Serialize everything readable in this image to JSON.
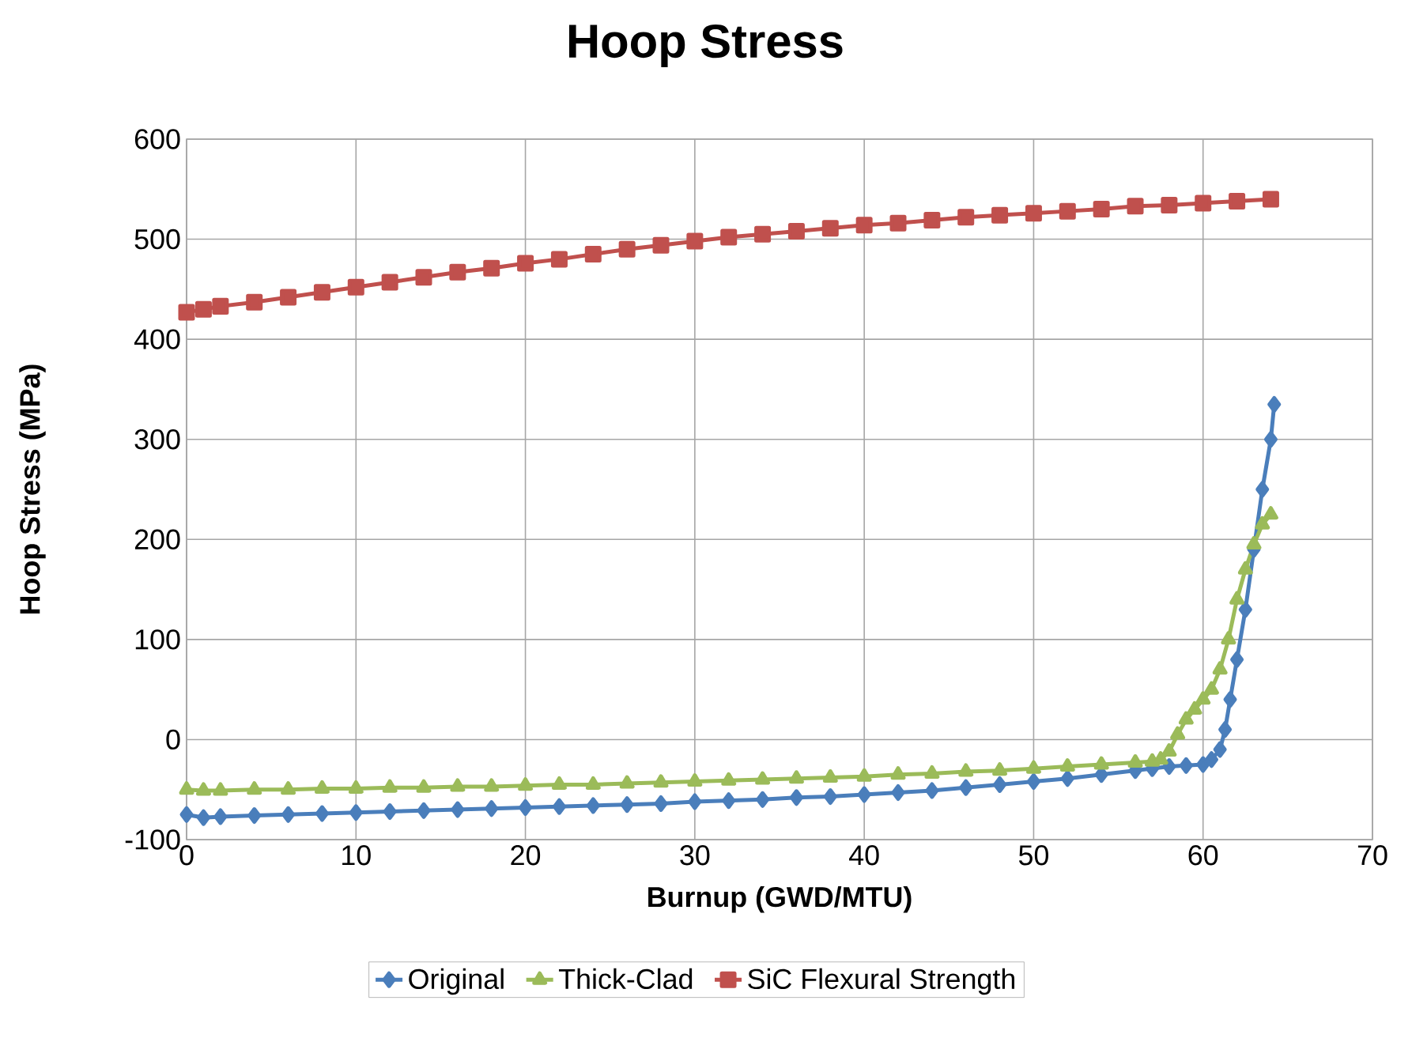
{
  "chart_data": {
    "type": "line",
    "title": "Hoop Stress",
    "xlabel": "Burnup (GWD/MTU)",
    "ylabel": "Hoop Stress (MPa)",
    "xlim": [
      0,
      70
    ],
    "xticks": [
      0,
      10,
      20,
      30,
      40,
      50,
      60,
      70
    ],
    "ylim": [
      -100,
      600
    ],
    "yticks": [
      -100,
      0,
      100,
      200,
      300,
      400,
      500,
      600
    ],
    "grid": true,
    "legend": "bottom",
    "series": [
      {
        "name": "Original",
        "color": "#4a7ebb",
        "marker": "diamond",
        "x": [
          0,
          1,
          2,
          4,
          6,
          8,
          10,
          12,
          14,
          16,
          18,
          20,
          22,
          24,
          26,
          28,
          30,
          32,
          34,
          36,
          38,
          40,
          42,
          44,
          46,
          48,
          50,
          52,
          54,
          56,
          57,
          58,
          59,
          60,
          60.5,
          61,
          61.3,
          61.6,
          62,
          62.5,
          63,
          63.5,
          64,
          64.2
        ],
        "values": [
          -75,
          -78,
          -77,
          -76,
          -75,
          -74,
          -73,
          -72,
          -71,
          -70,
          -69,
          -68,
          -67,
          -66,
          -65,
          -64,
          -62,
          -61,
          -60,
          -58,
          -57,
          -55,
          -53,
          -51,
          -48,
          -45,
          -42,
          -39,
          -35,
          -31,
          -29,
          -27,
          -26,
          -25,
          -20,
          -10,
          10,
          40,
          80,
          130,
          190,
          250,
          300,
          335
        ]
      },
      {
        "name": "Thick-Clad",
        "color": "#9bbb59",
        "marker": "triangle",
        "x": [
          0,
          1,
          2,
          4,
          6,
          8,
          10,
          12,
          14,
          16,
          18,
          20,
          22,
          24,
          26,
          28,
          30,
          32,
          34,
          36,
          38,
          40,
          42,
          44,
          46,
          48,
          50,
          52,
          54,
          56,
          57,
          57.5,
          58,
          58.5,
          59,
          59.5,
          60,
          60.5,
          61,
          61.5,
          62,
          62.5,
          63,
          63.5,
          64
        ],
        "values": [
          -50,
          -51,
          -51,
          -50,
          -50,
          -49,
          -49,
          -48,
          -48,
          -47,
          -47,
          -46,
          -45,
          -45,
          -44,
          -43,
          -42,
          -41,
          -40,
          -39,
          -38,
          -37,
          -35,
          -34,
          -32,
          -31,
          -29,
          -27,
          -25,
          -23,
          -22,
          -20,
          -12,
          5,
          20,
          30,
          40,
          50,
          70,
          100,
          140,
          170,
          195,
          215,
          225
        ]
      },
      {
        "name": "SiC Flexural Strength",
        "color": "#c0504d",
        "marker": "square",
        "x": [
          0,
          1,
          2,
          4,
          6,
          8,
          10,
          12,
          14,
          16,
          18,
          20,
          22,
          24,
          26,
          28,
          30,
          32,
          34,
          36,
          38,
          40,
          42,
          44,
          46,
          48,
          50,
          52,
          54,
          56,
          58,
          60,
          62,
          64
        ],
        "values": [
          427,
          430,
          433,
          437,
          442,
          447,
          452,
          457,
          462,
          467,
          471,
          476,
          480,
          485,
          490,
          494,
          498,
          502,
          505,
          508,
          511,
          514,
          516,
          519,
          522,
          524,
          526,
          528,
          530,
          533,
          534,
          536,
          538,
          540
        ]
      }
    ]
  }
}
